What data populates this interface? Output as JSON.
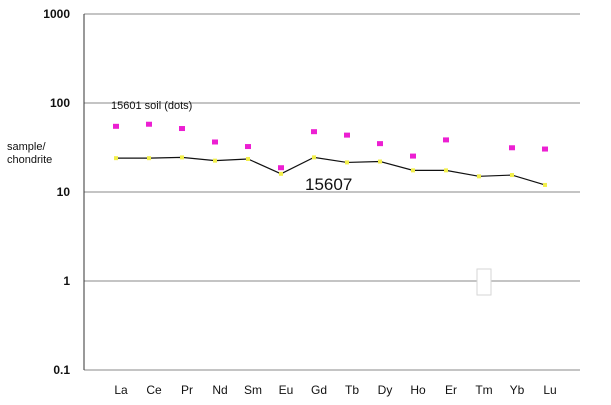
{
  "chart_data": {
    "type": "line",
    "yscale": "log",
    "ylim": [
      0.1,
      1000
    ],
    "yticks": [
      "0.1",
      "1",
      "10",
      "100",
      "1000"
    ],
    "ylabel": [
      "sample/",
      "chondrite"
    ],
    "xlabel": "",
    "categories": [
      "La",
      "Ce",
      "Pr",
      "Nd",
      "Sm",
      "Eu",
      "Gd",
      "Tb",
      "Dy",
      "Ho",
      "Er",
      "Tm",
      "Yb",
      "Lu"
    ],
    "grid": true,
    "series": [
      {
        "name": "15607",
        "style": "line",
        "color": "#111111",
        "marker_color": "#f2ef4a",
        "values": [
          24,
          24,
          24.5,
          22.5,
          23.5,
          16,
          24.5,
          21.5,
          22,
          17.5,
          17.5,
          15,
          15.5,
          12
        ]
      },
      {
        "name": "15601 soil (dots)",
        "style": "dots",
        "color": "#ec1fd2",
        "values": [
          54,
          57,
          51,
          36,
          32,
          18.5,
          47,
          43,
          34.5,
          25,
          38,
          null,
          31,
          30
        ]
      }
    ],
    "annotations": [
      "15601 soil (dots)",
      "15607"
    ]
  }
}
